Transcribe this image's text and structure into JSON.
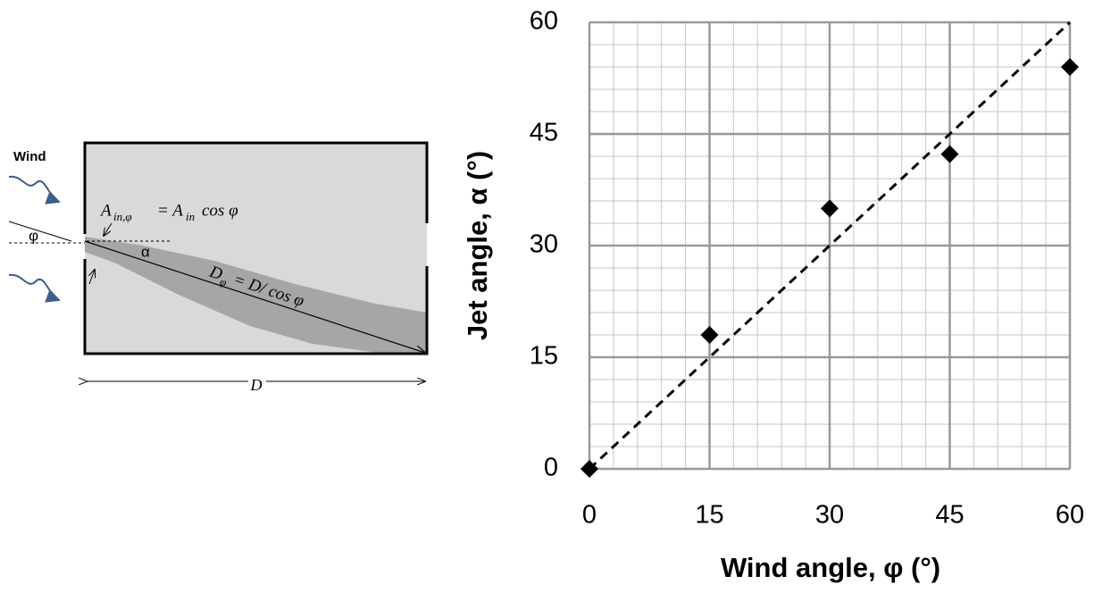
{
  "chart_data": {
    "type": "scatter",
    "x_label": "Wind angle,  φ (°)",
    "y_label": "Jet angle, α (°)",
    "x": [
      0,
      15,
      30,
      45,
      60
    ],
    "series": [
      {
        "color": "#000000",
        "values": [
          0,
          18,
          35,
          42.3,
          54
        ]
      }
    ],
    "reference_line": {
      "x": [
        0,
        60
      ],
      "values": [
        0,
        60
      ],
      "color": "#000000",
      "style": "dashed"
    },
    "xlim": [
      0,
      60
    ],
    "ylim": [
      0,
      60
    ],
    "xticks": [
      0,
      15,
      30,
      45,
      60
    ],
    "yticks": [
      0,
      15,
      30,
      45,
      60
    ],
    "grid": true,
    "minor_grid_step": 3
  },
  "diagram": {
    "wind": "Wind",
    "phi": "φ",
    "alpha": "α",
    "length": "D",
    "inflow_formula": [
      "A",
      "in,φ",
      "= A",
      "in",
      "cos φ"
    ],
    "path_formula": [
      "D",
      "φ",
      "= D/ cos φ"
    ]
  }
}
